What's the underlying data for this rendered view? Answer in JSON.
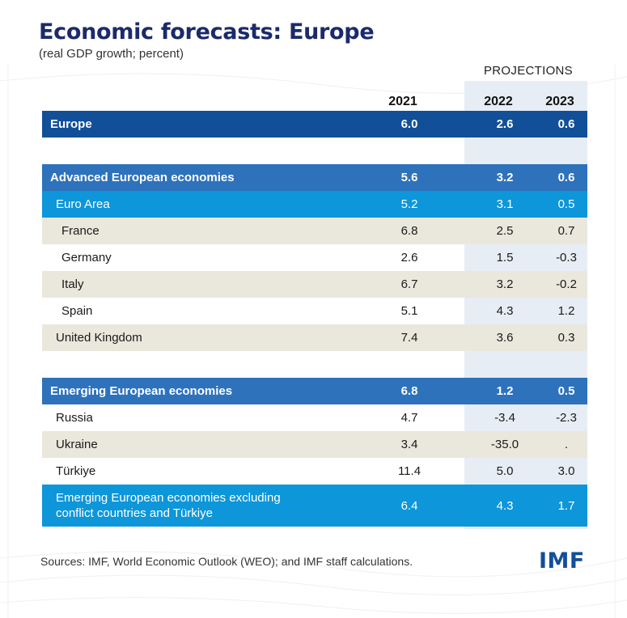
{
  "title": "Economic forecasts: Europe",
  "subtitle": "(real GDP growth; percent)",
  "projections_label": "PROJECTIONS",
  "sources": "Sources: IMF, World Economic Outlook (WEO); and IMF staff calculations.",
  "logo_text": "IMF",
  "colors": {
    "title": "#1b2a6b",
    "header_row": "#124f99",
    "group_row": "#2e72bb",
    "sub_row": "#0d96d9",
    "light_row": "#eae7dc",
    "projection_band": "#e7edf5"
  },
  "chart_data": {
    "type": "table",
    "columns": [
      "2021",
      "2022",
      "2023"
    ],
    "projection_columns": [
      "2022",
      "2023"
    ],
    "rows": [
      {
        "label": "Europe",
        "values": [
          "6.0",
          "2.6",
          "0.6"
        ],
        "style": "header",
        "indent": 0
      },
      {
        "label": "Advanced European economies",
        "values": [
          "5.6",
          "3.2",
          "0.6"
        ],
        "style": "group",
        "indent": 0
      },
      {
        "label": "Euro Area",
        "values": [
          "5.2",
          "3.1",
          "0.5"
        ],
        "style": "sub",
        "indent": 1
      },
      {
        "label": "France",
        "values": [
          "6.8",
          "2.5",
          "0.7"
        ],
        "style": "light",
        "indent": 2
      },
      {
        "label": "Germany",
        "values": [
          "2.6",
          "1.5",
          "-0.3"
        ],
        "style": "plain",
        "indent": 2
      },
      {
        "label": "Italy",
        "values": [
          "6.7",
          "3.2",
          "-0.2"
        ],
        "style": "light",
        "indent": 2
      },
      {
        "label": "Spain",
        "values": [
          "5.1",
          "4.3",
          "1.2"
        ],
        "style": "plain",
        "indent": 2
      },
      {
        "label": "United Kingdom",
        "values": [
          "7.4",
          "3.6",
          "0.3"
        ],
        "style": "light",
        "indent": 1
      },
      {
        "label": "Emerging European economies",
        "values": [
          "6.8",
          "1.2",
          "0.5"
        ],
        "style": "group",
        "indent": 0
      },
      {
        "label": "Russia",
        "values": [
          "4.7",
          "-3.4",
          "-2.3"
        ],
        "style": "plain",
        "indent": 1
      },
      {
        "label": "Ukraine",
        "values": [
          "3.4",
          "-35.0",
          "."
        ],
        "style": "light",
        "indent": 1
      },
      {
        "label": "Türkiye",
        "values": [
          "11.4",
          "5.0",
          "3.0"
        ],
        "style": "plain",
        "indent": 1
      },
      {
        "label": "Emerging European economies excluding\nconflict countries and Türkiye",
        "values": [
          "6.4",
          "4.3",
          "1.7"
        ],
        "style": "sub",
        "indent": 1
      }
    ]
  }
}
